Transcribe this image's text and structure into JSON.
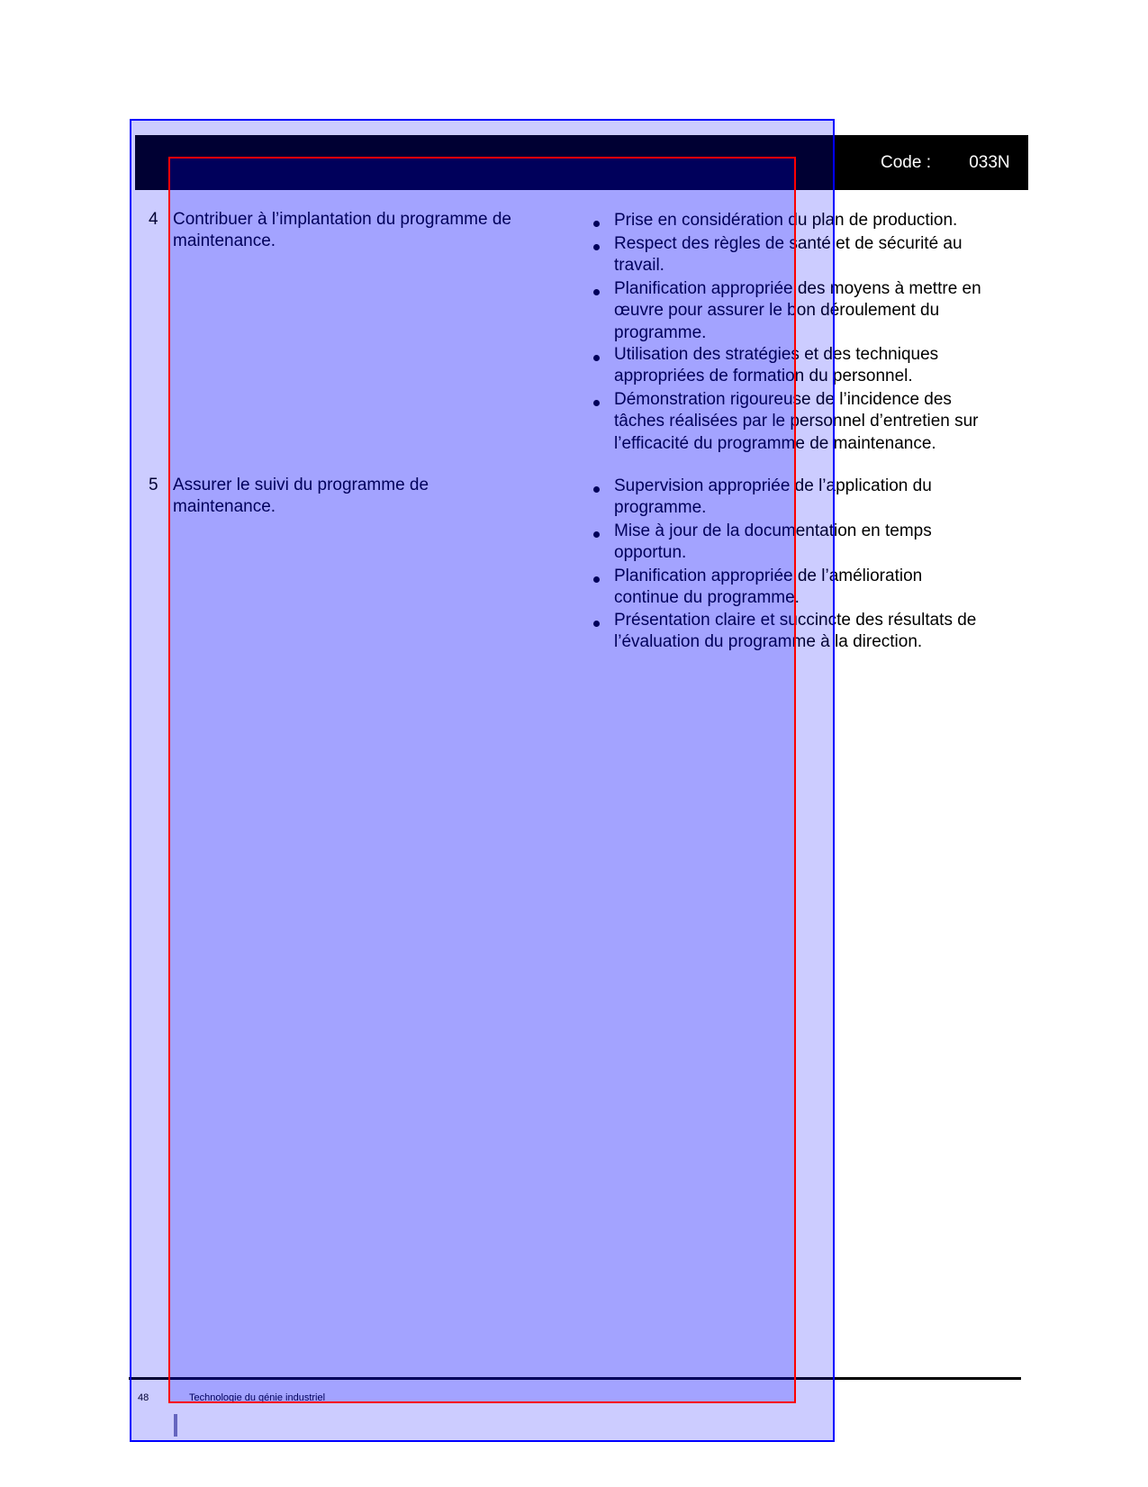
{
  "header": {
    "code_label": "Code :        033N"
  },
  "competencies": [
    {
      "number": "4",
      "lines": [
        "Contribuer à l’implantation du programme de",
        "maintenance."
      ],
      "criteria": [
        [
          "Prise en considération du plan de production."
        ],
        [
          "Respect des règles de santé et de sécurité au",
          "travail."
        ],
        [
          "Planification appropriée des moyens à mettre en",
          "œuvre pour assurer le bon déroulement du",
          "programme."
        ],
        [
          "Utilisation des stratégies et des techniques",
          "appropriées de formation du personnel."
        ],
        [
          "Démonstration rigoureuse de l’incidence des",
          "tâches réalisées par le personnel d’entretien sur",
          "l’efficacité du programme de maintenance."
        ]
      ]
    },
    {
      "number": "5",
      "lines": [
        "Assurer le suivi du programme de",
        "maintenance."
      ],
      "criteria": [
        [
          "Supervision appropriée de l’application du",
          "programme."
        ],
        [
          "Mise à jour de la documentation en temps",
          "opportun."
        ],
        [
          "Planification appropriée de l’amélioration",
          "continue du programme."
        ],
        [
          "Présentation claire et succincte des résultats de",
          "l’évaluation du programme à la direction."
        ]
      ]
    }
  ],
  "footer": {
    "page": "48",
    "title": "Technologie du génie industriel"
  },
  "colors": {
    "header_bg": "#000000",
    "overlay_outer": "#0000ff",
    "overlay_inner": "#ff0000"
  }
}
